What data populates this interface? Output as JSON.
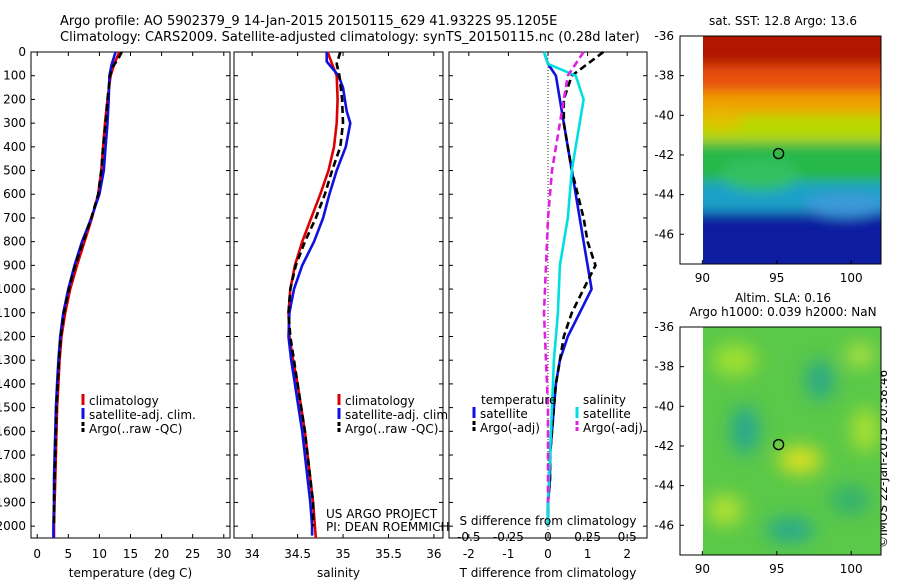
{
  "header": {
    "line1": "Argo profile: AO 5902379_9 14-Jan-2015 20150115_629 41.9322S 95.1205E",
    "line2": "Climatology: CARS2009. Satellite-adjusted climatology: synTS_20150115.nc (0.28d later)"
  },
  "side_text": "©IMOS 22-Jan-2015 20:38:46",
  "project": {
    "line1": "US ARGO PROJECT",
    "line2": "PI: DEAN ROEMMICH"
  },
  "colors": {
    "clim": "#dd0000",
    "sat": "#1010e0",
    "argo": "#000000",
    "sat_diff": "#00e0e0",
    "argo_diff": "#e020e0"
  },
  "chart_data": [
    {
      "type": "line",
      "xlabel": "temperature (deg C)",
      "xlim": [
        -1,
        31
      ],
      "xticks": [
        0,
        5,
        10,
        15,
        20,
        25,
        30
      ],
      "ylim": [
        2050,
        0
      ],
      "yticks": [
        0,
        100,
        200,
        300,
        400,
        500,
        600,
        700,
        800,
        900,
        1000,
        1100,
        1200,
        1300,
        1400,
        1500,
        1600,
        1700,
        1800,
        1900,
        2000
      ],
      "legend": [
        "climatology",
        "satellite-adj. clim.",
        "Argo(..raw -QC)"
      ],
      "series": [
        {
          "name": "climatology",
          "style": "solid",
          "color": "#dd0000",
          "points": [
            [
              13.2,
              0
            ],
            [
              12.4,
              50
            ],
            [
              11.8,
              100
            ],
            [
              11.3,
              200
            ],
            [
              10.9,
              300
            ],
            [
              10.6,
              400
            ],
            [
              10.3,
              500
            ],
            [
              9.8,
              600
            ],
            [
              8.8,
              700
            ],
            [
              7.6,
              800
            ],
            [
              6.4,
              900
            ],
            [
              5.3,
              1000
            ],
            [
              4.5,
              1100
            ],
            [
              3.9,
              1200
            ],
            [
              3.6,
              1300
            ],
            [
              3.4,
              1400
            ],
            [
              3.2,
              1500
            ],
            [
              3.1,
              1600
            ],
            [
              3.0,
              1700
            ],
            [
              2.9,
              1800
            ],
            [
              2.8,
              1900
            ],
            [
              2.7,
              2000
            ],
            [
              2.7,
              2050
            ]
          ]
        },
        {
          "name": "satellite-adj. clim.",
          "style": "solid",
          "color": "#1010e0",
          "points": [
            [
              12.6,
              0
            ],
            [
              12.0,
              50
            ],
            [
              11.6,
              100
            ],
            [
              11.5,
              200
            ],
            [
              11.3,
              300
            ],
            [
              11.0,
              400
            ],
            [
              10.7,
              500
            ],
            [
              10.0,
              600
            ],
            [
              8.7,
              700
            ],
            [
              7.2,
              800
            ],
            [
              6.0,
              900
            ],
            [
              5.0,
              1000
            ],
            [
              4.2,
              1100
            ],
            [
              3.7,
              1200
            ],
            [
              3.4,
              1300
            ],
            [
              3.2,
              1400
            ],
            [
              3.0,
              1500
            ],
            [
              2.9,
              1600
            ],
            [
              2.8,
              1700
            ],
            [
              2.7,
              1800
            ],
            [
              2.7,
              1900
            ],
            [
              2.6,
              2000
            ],
            [
              2.6,
              2050
            ]
          ]
        },
        {
          "name": "Argo(..raw -QC)",
          "style": "dashed",
          "color": "#000000",
          "points": [
            [
              13.6,
              0
            ],
            [
              13.0,
              30
            ],
            [
              12.2,
              60
            ],
            [
              11.7,
              100
            ],
            [
              11.3,
              200
            ],
            [
              11.0,
              300
            ],
            [
              10.6,
              400
            ],
            [
              10.3,
              500
            ],
            [
              9.8,
              600
            ],
            [
              8.7,
              700
            ],
            [
              7.4,
              800
            ],
            [
              6.1,
              900
            ],
            [
              5.1,
              1000
            ],
            [
              4.3,
              1100
            ],
            [
              3.8,
              1200
            ],
            [
              3.5,
              1300
            ],
            [
              3.3,
              1400
            ],
            [
              3.1,
              1500
            ],
            [
              3.0,
              1600
            ],
            [
              2.9,
              1700
            ],
            [
              2.8,
              1800
            ],
            [
              2.7,
              1900
            ],
            [
              2.7,
              2000
            ]
          ]
        }
      ]
    },
    {
      "type": "line",
      "xlabel": "salinity",
      "xlim": [
        33.8,
        36.1
      ],
      "xticks": [
        34,
        34.5,
        35,
        35.5,
        36
      ],
      "xticklabels": [
        "34",
        "34.5",
        "35",
        "35.5",
        "36"
      ],
      "ylim": [
        2050,
        0
      ],
      "legend": [
        "climatology",
        "satellite-adj. clim.",
        "Argo(..raw -QC)"
      ],
      "series": [
        {
          "name": "climatology",
          "style": "solid",
          "color": "#dd0000",
          "points": [
            [
              34.83,
              0
            ],
            [
              34.88,
              50
            ],
            [
              34.93,
              100
            ],
            [
              34.94,
              200
            ],
            [
              34.93,
              300
            ],
            [
              34.9,
              400
            ],
            [
              34.84,
              500
            ],
            [
              34.75,
              600
            ],
            [
              34.65,
              700
            ],
            [
              34.55,
              800
            ],
            [
              34.47,
              900
            ],
            [
              34.42,
              1000
            ],
            [
              34.4,
              1100
            ],
            [
              34.41,
              1200
            ],
            [
              34.45,
              1300
            ],
            [
              34.5,
              1400
            ],
            [
              34.54,
              1500
            ],
            [
              34.58,
              1600
            ],
            [
              34.61,
              1700
            ],
            [
              34.64,
              1800
            ],
            [
              34.67,
              1900
            ],
            [
              34.69,
              2000
            ],
            [
              34.7,
              2050
            ]
          ]
        },
        {
          "name": "satellite-adj. clim.",
          "style": "solid",
          "color": "#1010e0",
          "points": [
            [
              34.82,
              0
            ],
            [
              34.82,
              40
            ],
            [
              34.95,
              100
            ],
            [
              35.0,
              150
            ],
            [
              35.04,
              250
            ],
            [
              35.08,
              300
            ],
            [
              35.03,
              400
            ],
            [
              34.93,
              500
            ],
            [
              34.85,
              600
            ],
            [
              34.78,
              700
            ],
            [
              34.68,
              800
            ],
            [
              34.55,
              900
            ],
            [
              34.46,
              1000
            ],
            [
              34.41,
              1100
            ],
            [
              34.4,
              1200
            ],
            [
              34.43,
              1300
            ],
            [
              34.47,
              1400
            ],
            [
              34.51,
              1500
            ],
            [
              34.55,
              1600
            ],
            [
              34.58,
              1700
            ],
            [
              34.61,
              1800
            ],
            [
              34.64,
              1900
            ],
            [
              34.66,
              2000
            ],
            [
              34.66,
              2040
            ]
          ]
        },
        {
          "name": "Argo(..raw -QC)",
          "style": "dashed",
          "color": "#000000",
          "points": [
            [
              34.97,
              0
            ],
            [
              34.93,
              50
            ],
            [
              34.96,
              100
            ],
            [
              34.99,
              200
            ],
            [
              35.0,
              300
            ],
            [
              34.97,
              400
            ],
            [
              34.88,
              500
            ],
            [
              34.8,
              600
            ],
            [
              34.7,
              700
            ],
            [
              34.58,
              800
            ],
            [
              34.48,
              900
            ],
            [
              34.42,
              1000
            ],
            [
              34.4,
              1100
            ],
            [
              34.42,
              1200
            ],
            [
              34.46,
              1300
            ],
            [
              34.5,
              1400
            ],
            [
              34.54,
              1500
            ],
            [
              34.58,
              1600
            ],
            [
              34.61,
              1700
            ],
            [
              34.64,
              1800
            ],
            [
              34.67,
              1900
            ],
            [
              34.67,
              2000
            ]
          ]
        }
      ]
    },
    {
      "type": "line",
      "xlabel": "T difference from climatology",
      "top_label": "S difference from climatology",
      "xlim": [
        -2.5,
        2.5
      ],
      "xticks": [
        -2,
        -1,
        0,
        1,
        2
      ],
      "s_ticks": [
        -0.5,
        -0.25,
        0,
        0.25,
        0.5
      ],
      "s_ticklabels": [
        "-0.5",
        "-0.25",
        "0",
        "0.25",
        "0.5"
      ],
      "ylim": [
        2050,
        0
      ],
      "legend_left": [
        "temperature",
        "satellite",
        "Argo(-adj)"
      ],
      "legend_right": [
        "salinity",
        "satellite",
        "Argo(-adj)"
      ],
      "series": [
        {
          "name": "temperature satellite",
          "style": "solid",
          "color": "#1010e0",
          "points": [
            [
              -0.1,
              0
            ],
            [
              0.0,
              50
            ],
            [
              0.2,
              100
            ],
            [
              0.4,
              300
            ],
            [
              0.6,
              500
            ],
            [
              0.8,
              700
            ],
            [
              0.9,
              800
            ],
            [
              1.0,
              900
            ],
            [
              1.1,
              1000
            ],
            [
              0.8,
              1100
            ],
            [
              0.5,
              1200
            ],
            [
              0.3,
              1300
            ],
            [
              0.2,
              1400
            ],
            [
              0.15,
              1500
            ],
            [
              0.1,
              1600
            ],
            [
              0.05,
              1700
            ],
            [
              0.05,
              1800
            ],
            [
              0.0,
              1900
            ],
            [
              0.0,
              2000
            ]
          ]
        },
        {
          "name": "temperature Argo(-adj)",
          "style": "dashed",
          "color": "#000000",
          "points": [
            [
              1.4,
              0
            ],
            [
              1.0,
              50
            ],
            [
              0.6,
              100
            ],
            [
              0.4,
              200
            ],
            [
              0.4,
              300
            ],
            [
              0.6,
              500
            ],
            [
              0.9,
              700
            ],
            [
              1.0,
              800
            ],
            [
              1.2,
              900
            ],
            [
              0.9,
              1000
            ],
            [
              0.6,
              1100
            ],
            [
              0.4,
              1200
            ],
            [
              0.3,
              1300
            ],
            [
              0.2,
              1400
            ],
            [
              0.15,
              1500
            ],
            [
              0.1,
              1600
            ],
            [
              0.05,
              1700
            ],
            [
              0.05,
              1800
            ],
            [
              0.0,
              1900
            ],
            [
              0.0,
              2000
            ]
          ]
        },
        {
          "name": "salinity satellite",
          "style": "solid",
          "color": "#00e0e0",
          "points": [
            [
              -0.1,
              0
            ],
            [
              0.0,
              50
            ],
            [
              0.7,
              100
            ],
            [
              0.9,
              200
            ],
            [
              0.8,
              300
            ],
            [
              0.7,
              400
            ],
            [
              0.6,
              500
            ],
            [
              0.5,
              700
            ],
            [
              0.3,
              900
            ],
            [
              0.25,
              1100
            ],
            [
              0.15,
              1300
            ],
            [
              0.1,
              1500
            ],
            [
              0.05,
              1700
            ],
            [
              0.0,
              1900
            ],
            [
              0.0,
              2000
            ]
          ]
        },
        {
          "name": "salinity Argo(-adj)",
          "style": "dashed",
          "color": "#e020e0",
          "points": [
            [
              0.9,
              0
            ],
            [
              0.5,
              100
            ],
            [
              0.3,
              300
            ],
            [
              0.1,
              500
            ],
            [
              0.0,
              700
            ],
            [
              -0.05,
              900
            ],
            [
              -0.1,
              1100
            ],
            [
              -0.05,
              1300
            ],
            [
              0.0,
              1500
            ],
            [
              0.0,
              1700
            ],
            [
              0.0,
              1900
            ]
          ]
        }
      ]
    },
    {
      "type": "heatmap",
      "title": "sat. SST: 12.8 Argo: 13.6",
      "xticks": [
        90,
        95,
        100
      ],
      "yticks": [
        -36,
        -38,
        -40,
        -42,
        -44,
        -46
      ],
      "xlim": [
        88.5,
        102
      ],
      "ylim": [
        -47.5,
        -36
      ],
      "marker": {
        "lon": 95.12,
        "lat": -41.93
      }
    },
    {
      "type": "heatmap",
      "title_line1": "Altim. SLA: 0.16",
      "title_line2": "Argo h1000: 0.039 h2000: NaN",
      "xticks": [
        90,
        95,
        100
      ],
      "yticks": [
        -36,
        -38,
        -40,
        -42,
        -44,
        -46
      ],
      "xlim": [
        88.5,
        102
      ],
      "ylim": [
        -47.5,
        -36
      ],
      "marker": {
        "lon": 95.12,
        "lat": -41.93
      }
    }
  ]
}
